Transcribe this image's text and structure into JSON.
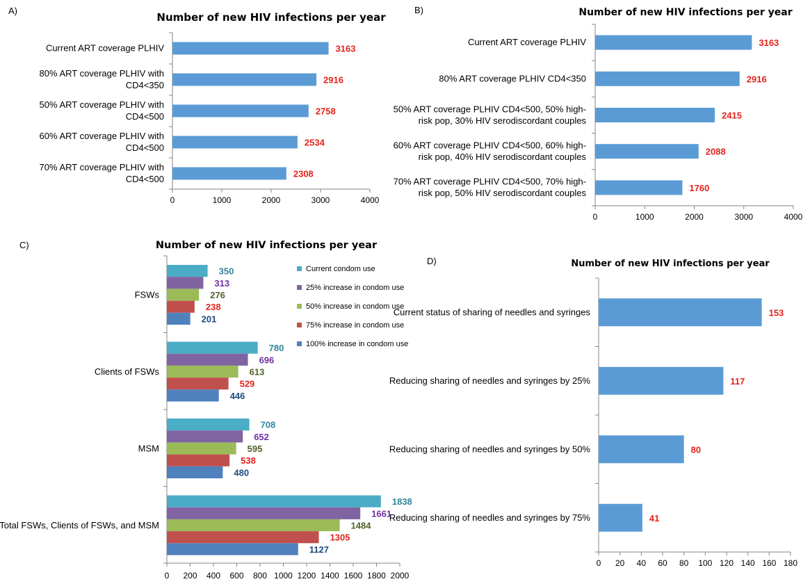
{
  "colors": {
    "bar": "#5B9BD5",
    "label": "#E3221C",
    "axis": "#868686"
  },
  "chart_data": [
    {
      "panel": "A)",
      "type": "bar",
      "orientation": "horizontal",
      "title": "Number of new HIV infections per year",
      "categories": [
        [
          "Current ART coverage PLHIV"
        ],
        [
          "80% ART coverage PLHIV with",
          "CD4<350"
        ],
        [
          "50% ART coverage PLHIV with",
          "CD4<500"
        ],
        [
          "60% ART coverage PLHIV with",
          "CD4<500"
        ],
        [
          "70% ART coverage PLHIV with",
          "CD4<500"
        ]
      ],
      "values": [
        3163,
        2916,
        2758,
        2534,
        2308
      ],
      "xlim": [
        0,
        4000
      ],
      "xticks": [
        0,
        1000,
        2000,
        3000,
        4000
      ],
      "grid": false
    },
    {
      "panel": "B)",
      "type": "bar",
      "orientation": "horizontal",
      "title": "Number of new HIV infections per year",
      "categories": [
        [
          "Current ART coverage PLHIV"
        ],
        [
          "80% ART coverage PLHIV CD4<350"
        ],
        [
          "50% ART coverage PLHIV CD4<500, 50% high-",
          "risk pop, 30% HIV serodiscordant couples"
        ],
        [
          "60% ART coverage PLHIV CD4<500, 60% high-",
          "risk pop, 40% HIV serodiscordant couples"
        ],
        [
          "70% ART coverage PLHIV CD4<500, 70% high-",
          "risk pop, 50% HIV serodiscordant couples"
        ]
      ],
      "values": [
        3163,
        2916,
        2415,
        2088,
        1760
      ],
      "xlim": [
        0,
        4000
      ],
      "xticks": [
        0,
        1000,
        2000,
        3000,
        4000
      ],
      "grid": false
    },
    {
      "panel": "C)",
      "type": "bar",
      "orientation": "horizontal",
      "title": "Number of new HIV infections per year",
      "categories": [
        "FSWs",
        "Clients of FSWs",
        "MSM",
        "Total FSWs, Clients of FSWs, and MSM"
      ],
      "series": [
        {
          "name": "Current condom use",
          "color": "#4BACC6",
          "label_color": "#31859C",
          "values": [
            350,
            780,
            708,
            1838
          ]
        },
        {
          "name": "25% increase in condom use",
          "color": "#8064A2",
          "label_color": "#7030A0",
          "values": [
            313,
            696,
            652,
            1661
          ]
        },
        {
          "name": "50% increase in condom use",
          "color": "#9BBB59",
          "label_color": "#4F6228",
          "values": [
            276,
            613,
            595,
            1484
          ]
        },
        {
          "name": "75% increase in condom use",
          "color": "#C0504D",
          "label_color": "#E3221C",
          "values": [
            238,
            529,
            538,
            1305
          ]
        },
        {
          "name": "100% increase in condom use",
          "color": "#4F81BD",
          "label_color": "#1F497D",
          "values": [
            201,
            446,
            480,
            1127
          ]
        }
      ],
      "xlim": [
        0,
        2000
      ],
      "xticks": [
        0,
        200,
        400,
        600,
        800,
        1000,
        1200,
        1400,
        1600,
        1800,
        2000
      ],
      "legend": "right",
      "grid": false
    },
    {
      "panel": "D)",
      "type": "bar",
      "orientation": "horizontal",
      "title": "Number of new HIV infections per year",
      "categories": [
        [
          "Current status of sharing of needles and syringes"
        ],
        [
          "Reducing sharing of needles and syringes by 25%"
        ],
        [
          "Reducing sharing of needles and syringes by 50%"
        ],
        [
          "Reducing sharing of needles and syringes by 75%"
        ]
      ],
      "values": [
        153,
        117,
        80,
        41
      ],
      "xlim": [
        0,
        180
      ],
      "xticks": [
        0,
        20,
        40,
        60,
        80,
        100,
        120,
        140,
        160,
        180
      ],
      "grid": false
    }
  ]
}
